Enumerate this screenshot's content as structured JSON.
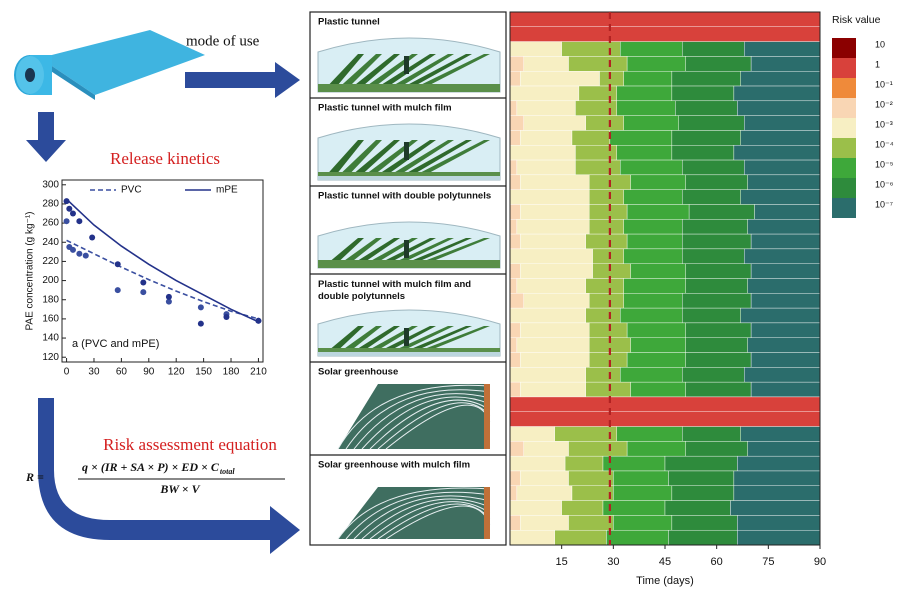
{
  "labels": {
    "mode_of_use": "mode of use",
    "release_kinetics": "Release kinetics",
    "risk_equation_title": "Risk assessment equation"
  },
  "equation": {
    "lhs": "R =",
    "numerator": "q × (IR + SA × P) × ED × C",
    "numerator_sub": "total",
    "denominator": "BW × V"
  },
  "scenarios": [
    "Plastic tunnel",
    "Plastic tunnel with mulch film",
    "Plastic tunnel with double polytunnels",
    "Plastic tunnel with mulch film and double polytunnels",
    "Solar greenhouse",
    "Solar greenhouse with mulch film"
  ],
  "chart_data": [
    {
      "type": "scatter",
      "xlabel": null,
      "ylabel": "PAE concentration (g kg⁻¹)",
      "annotation": "a (PVC and mPE)",
      "xlim": [
        -5,
        215
      ],
      "ylim": [
        115,
        305
      ],
      "xticks": [
        0,
        30,
        60,
        90,
        120,
        150,
        180,
        210
      ],
      "yticks": [
        120,
        140,
        160,
        180,
        200,
        220,
        240,
        260,
        280,
        300
      ],
      "legend": "top",
      "series": [
        {
          "name": "PVC",
          "color": "#3a4fa0",
          "line_style": "dashed",
          "x": [
            0,
            3,
            7,
            14,
            21,
            56,
            84,
            112,
            147,
            175,
            210
          ],
          "values": [
            262,
            235,
            232,
            228,
            226,
            190,
            188,
            178,
            172,
            165,
            158
          ],
          "fit_x": [
            0,
            30,
            60,
            90,
            120,
            150,
            180,
            210
          ],
          "fit_values": [
            242,
            228,
            214,
            201,
            189,
            178,
            168,
            160
          ]
        },
        {
          "name": "mPE",
          "color": "#23328a",
          "line_style": "solid",
          "x": [
            0,
            3,
            7,
            14,
            28,
            56,
            84,
            112,
            147,
            175,
            210
          ],
          "values": [
            283,
            275,
            270,
            262,
            245,
            217,
            198,
            183,
            155,
            162,
            158
          ],
          "fit_x": [
            0,
            30,
            60,
            90,
            120,
            150,
            180,
            210
          ],
          "fit_values": [
            285,
            258,
            236,
            217,
            200,
            185,
            170,
            157
          ]
        }
      ]
    },
    {
      "type": "bar",
      "orientation": "horizontal",
      "stacked": true,
      "xlabel": "Time (days)",
      "legend_title": "Risk value",
      "xlim": [
        0,
        90
      ],
      "xticks": [
        15,
        30,
        45,
        60,
        75,
        90
      ],
      "reference_line": {
        "value": 29,
        "color": "#b22222"
      },
      "categories": [
        null,
        null,
        null,
        null,
        null,
        null,
        null,
        null,
        null,
        null,
        null,
        null,
        null,
        null,
        null,
        null,
        null,
        null,
        null,
        null,
        null,
        null,
        null,
        null,
        null,
        null,
        null,
        null,
        null,
        null,
        null,
        null,
        null,
        null,
        null,
        null
      ],
      "series": [
        {
          "name": "10",
          "color": "#8b0000",
          "values": [
            0,
            0,
            0,
            0,
            0,
            0,
            0,
            0,
            0,
            0,
            0,
            0,
            0,
            0,
            0,
            0,
            0,
            0,
            0,
            0,
            0,
            0,
            0,
            0,
            0,
            0,
            0,
            0,
            0,
            0,
            0,
            0,
            0,
            0,
            0,
            0
          ]
        },
        {
          "name": "1",
          "color": "#d8413b",
          "values": [
            90,
            90,
            0,
            0,
            0,
            0,
            0,
            0,
            0,
            0,
            0,
            0,
            0,
            0,
            0,
            0,
            0,
            0,
            0,
            0,
            0,
            0,
            0,
            0,
            0,
            0,
            90,
            90,
            0,
            0,
            0,
            0,
            0,
            0,
            0,
            0
          ]
        },
        {
          "name": "10⁻¹",
          "color": "#ef8a3a",
          "values": [
            0,
            0,
            0,
            0,
            0,
            0,
            0,
            0,
            0,
            0,
            0,
            0,
            0,
            0,
            0,
            0,
            0,
            0,
            0,
            0,
            0,
            0,
            0,
            0,
            0,
            0,
            0,
            0,
            0,
            0,
            0,
            0,
            0,
            0,
            0,
            0
          ]
        },
        {
          "name": "10⁻²",
          "color": "#f9d6b4",
          "values": [
            0,
            0,
            0,
            4,
            3,
            0,
            2,
            4,
            3,
            0,
            2,
            3,
            0,
            3,
            2,
            3,
            0,
            3,
            2,
            4,
            0,
            3,
            2,
            3,
            0,
            3,
            0,
            0,
            0,
            4,
            0,
            3,
            2,
            0,
            3,
            0
          ]
        },
        {
          "name": "10⁻³",
          "color": "#f7efc3",
          "values": [
            0,
            0,
            15,
            13,
            23,
            20,
            17,
            18,
            15,
            19,
            17,
            20,
            23,
            20,
            21,
            19,
            24,
            21,
            20,
            19,
            22,
            20,
            21,
            20,
            22,
            19,
            0,
            0,
            13,
            13,
            16,
            14,
            16,
            15,
            14,
            13
          ]
        },
        {
          "name": "10⁻⁴",
          "color": "#9bbf4a",
          "values": [
            0,
            0,
            17,
            17,
            7,
            11,
            12,
            11,
            11,
            12,
            13,
            12,
            10,
            11,
            10,
            12,
            9,
            11,
            11,
            10,
            10,
            11,
            12,
            11,
            10,
            13,
            0,
            0,
            18,
            17,
            11,
            13,
            12,
            12,
            13,
            15
          ]
        },
        {
          "name": "10⁻⁵",
          "color": "#3ea83a",
          "values": [
            0,
            0,
            18,
            17,
            14,
            16,
            17,
            16,
            18,
            16,
            18,
            16,
            17,
            18,
            17,
            16,
            17,
            16,
            18,
            17,
            18,
            17,
            16,
            17,
            18,
            16,
            0,
            0,
            19,
            17,
            18,
            16,
            17,
            18,
            17,
            18
          ]
        },
        {
          "name": "10⁻⁶",
          "color": "#2e8b3c",
          "values": [
            0,
            0,
            18,
            19,
            20,
            18,
            18,
            19,
            20,
            18,
            18,
            18,
            17,
            19,
            19,
            20,
            18,
            19,
            18,
            20,
            17,
            19,
            18,
            19,
            18,
            19,
            0,
            0,
            17,
            18,
            21,
            19,
            18,
            19,
            19,
            20
          ]
        },
        {
          "name": "10⁻⁷",
          "color": "#2b6d6c",
          "values": [
            0,
            0,
            22,
            20,
            23,
            25,
            24,
            22,
            23,
            25,
            22,
            21,
            23,
            19,
            21,
            20,
            22,
            20,
            21,
            20,
            23,
            20,
            21,
            20,
            22,
            20,
            0,
            0,
            23,
            21,
            24,
            25,
            25,
            26,
            24,
            24
          ]
        }
      ]
    }
  ]
}
